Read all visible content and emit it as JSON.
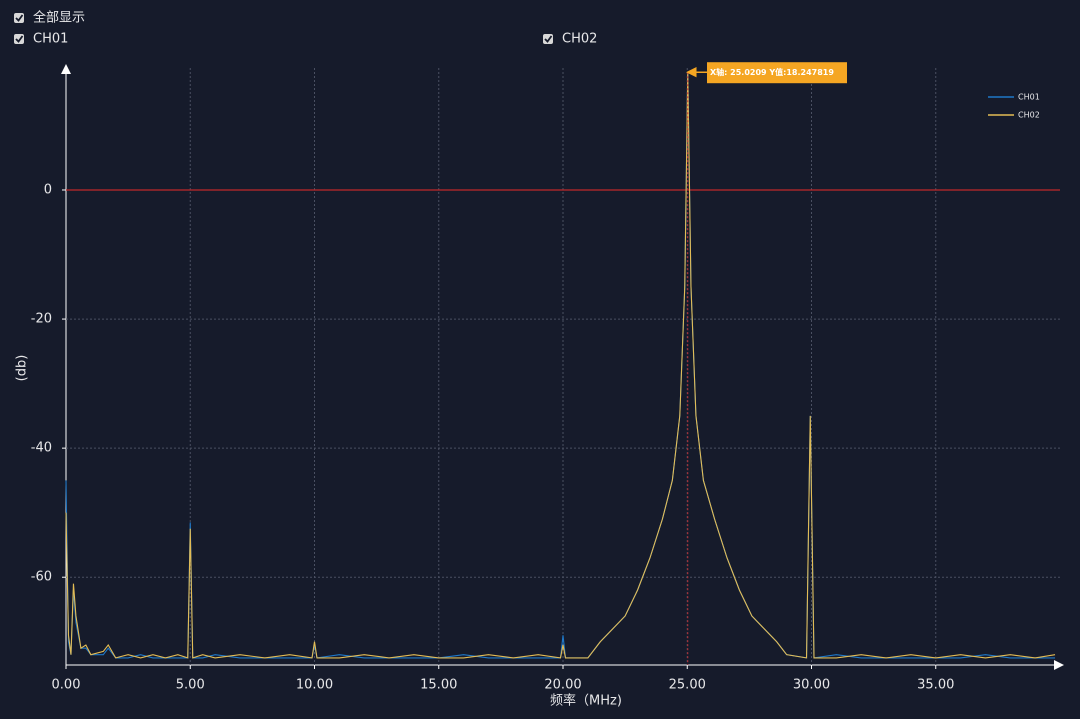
{
  "chart_data": {
    "type": "line",
    "controls": [
      "全部显示",
      "CH01",
      "CH02"
    ],
    "xlabel": "频率（MHz)",
    "ylabel": "(db)",
    "xlim": [
      0,
      40
    ],
    "ylim": [
      -73.6,
      18.9
    ],
    "xticks": [
      {
        "value": 0,
        "label": "0.00"
      },
      {
        "value": 5,
        "label": "5.00"
      },
      {
        "value": 10,
        "label": "10.00"
      },
      {
        "value": 15,
        "label": "15.00"
      },
      {
        "value": 20,
        "label": "20.00"
      },
      {
        "value": 25,
        "label": "25.00"
      },
      {
        "value": 30,
        "label": "30.00"
      },
      {
        "value": 35,
        "label": "35.00"
      }
    ],
    "yticks": [
      -60,
      -40,
      -20,
      0
    ],
    "grid": true,
    "reference_y": 0,
    "reference_color": "#c0282b",
    "annotation": {
      "text": "X轴: 25.0209 Y值:18.247819",
      "x": 25.0209,
      "y": 18.247819
    },
    "legend": "upper right",
    "x": [
      0,
      0.1,
      0.2,
      0.3,
      0.4,
      0.6,
      0.8,
      1.0,
      1.5,
      1.7,
      2.0,
      2.5,
      3.0,
      3.5,
      4.0,
      4.5,
      4.9,
      5.0,
      5.1,
      5.5,
      6,
      7,
      8,
      9,
      9.9,
      10.0,
      10.1,
      11,
      12,
      13,
      14,
      15,
      16,
      17,
      18,
      19,
      19.9,
      20.0,
      20.1,
      21,
      21.5,
      22,
      22.5,
      23,
      23.5,
      24,
      24.4,
      24.7,
      24.9,
      25.0209,
      25.15,
      25.35,
      25.65,
      26.1,
      26.6,
      27.1,
      27.6,
      28.1,
      28.6,
      29,
      29.8,
      29.95,
      30.1,
      31,
      32,
      33,
      34,
      35,
      36,
      37,
      38,
      39,
      39.8
    ],
    "series": [
      {
        "name": "CH01",
        "color": "#1f78c8",
        "values": [
          -45,
          -70,
          -72,
          -62,
          -67,
          -71,
          -71,
          -72,
          -72,
          -71,
          -72.5,
          -72.5,
          -72,
          -72.5,
          -72.5,
          -72.5,
          -72.5,
          -51.5,
          -72.5,
          -72.5,
          -72,
          -72.5,
          -72.5,
          -72.5,
          -72.5,
          -70.5,
          -72.5,
          -72,
          -72.5,
          -72.5,
          -72.5,
          -72.5,
          -72,
          -72.5,
          -72.5,
          -72.5,
          -72.5,
          -69,
          -72.5,
          -72.5,
          -70,
          -68,
          -66,
          -62,
          -57,
          -51,
          -45,
          -35,
          -15,
          18.25,
          -15,
          -35,
          -45,
          -51,
          -57,
          -62,
          -66,
          -68,
          -70,
          -72,
          -72.5,
          -35,
          -72.5,
          -72,
          -72.5,
          -72.5,
          -72.5,
          -72.5,
          -72.5,
          -72,
          -72.5,
          -72.5,
          -72.5
        ]
      },
      {
        "name": "CH02",
        "color": "#e3bc55",
        "values": [
          -50,
          -69,
          -72,
          -61,
          -66,
          -71,
          -70.5,
          -72,
          -71.5,
          -70.5,
          -72.5,
          -72,
          -72.5,
          -72,
          -72.5,
          -72,
          -72.5,
          -52.5,
          -72.5,
          -72,
          -72.5,
          -72,
          -72.5,
          -72,
          -72.5,
          -70,
          -72.5,
          -72.5,
          -72,
          -72.5,
          -72,
          -72.5,
          -72.5,
          -72,
          -72.5,
          -72,
          -72.5,
          -70.5,
          -72.5,
          -72.5,
          -70,
          -68,
          -66,
          -62,
          -57,
          -51,
          -45,
          -35,
          -15,
          18.247819,
          -15,
          -35,
          -45,
          -51,
          -57,
          -62,
          -66,
          -68,
          -70,
          -72,
          -72.5,
          -35,
          -72.5,
          -72.5,
          -72,
          -72.5,
          -72,
          -72.5,
          -72,
          -72.5,
          -72,
          -72.5,
          -72
        ]
      }
    ]
  }
}
